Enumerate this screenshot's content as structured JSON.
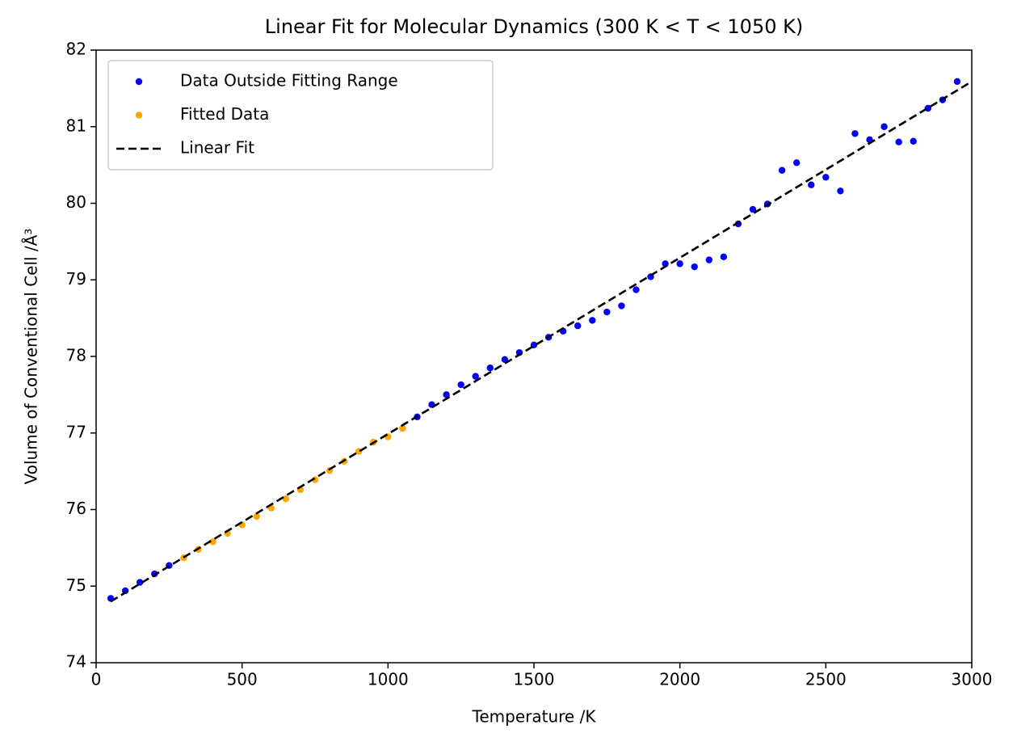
{
  "chart_data": {
    "type": "scatter",
    "title": "Linear Fit for Molecular Dynamics (300 K < T < 1050 K)",
    "x_label": "Temperature /K",
    "y_label": "Volume of Conventional Cell /Å³",
    "xlim": [
      0,
      3000
    ],
    "ylim": [
      74,
      82
    ],
    "xticks": [
      0,
      500,
      1000,
      1500,
      2000,
      2500,
      3000
    ],
    "yticks": [
      74,
      75,
      76,
      77,
      78,
      79,
      80,
      81,
      82
    ],
    "legend": "upper left",
    "series": [
      {
        "name": "Data Outside Fitting Range",
        "color": "#0000ff",
        "mode": "markers",
        "x": [
          50,
          100,
          150,
          200,
          250,
          1100,
          1150,
          1200,
          1250,
          1300,
          1350,
          1400,
          1450,
          1500,
          1550,
          1600,
          1650,
          1700,
          1750,
          1800,
          1850,
          1900,
          1950,
          2000,
          2050,
          2100,
          2150,
          2200,
          2250,
          2300,
          2350,
          2400,
          2450,
          2500,
          2550,
          2600,
          2650,
          2700,
          2750,
          2800,
          2850,
          2900,
          2950
        ],
        "values": [
          74.84,
          74.94,
          75.05,
          75.16,
          75.27,
          77.21,
          77.37,
          77.5,
          77.63,
          77.74,
          77.85,
          77.96,
          78.05,
          78.15,
          78.25,
          78.33,
          78.4,
          78.47,
          78.58,
          78.66,
          78.87,
          79.04,
          79.21,
          79.21,
          79.17,
          79.26,
          79.3,
          79.73,
          79.92,
          79.99,
          80.43,
          80.53,
          80.24,
          80.34,
          80.16,
          80.91,
          80.83,
          81.0,
          80.8,
          80.81,
          81.24,
          81.35,
          81.59
        ]
      },
      {
        "name": "Fitted Data",
        "color": "#ffa500",
        "mode": "markers",
        "x": [
          300,
          350,
          400,
          450,
          500,
          550,
          600,
          650,
          700,
          750,
          800,
          850,
          900,
          950,
          1000,
          1050
        ],
        "values": [
          75.37,
          75.48,
          75.58,
          75.69,
          75.8,
          75.91,
          76.02,
          76.14,
          76.26,
          76.39,
          76.51,
          76.63,
          76.76,
          76.88,
          76.95,
          77.06
        ]
      },
      {
        "name": "Linear Fit",
        "color": "#000000",
        "mode": "dashed-line",
        "x": [
          50,
          3000
        ],
        "values": [
          74.8,
          81.59
        ]
      }
    ]
  }
}
